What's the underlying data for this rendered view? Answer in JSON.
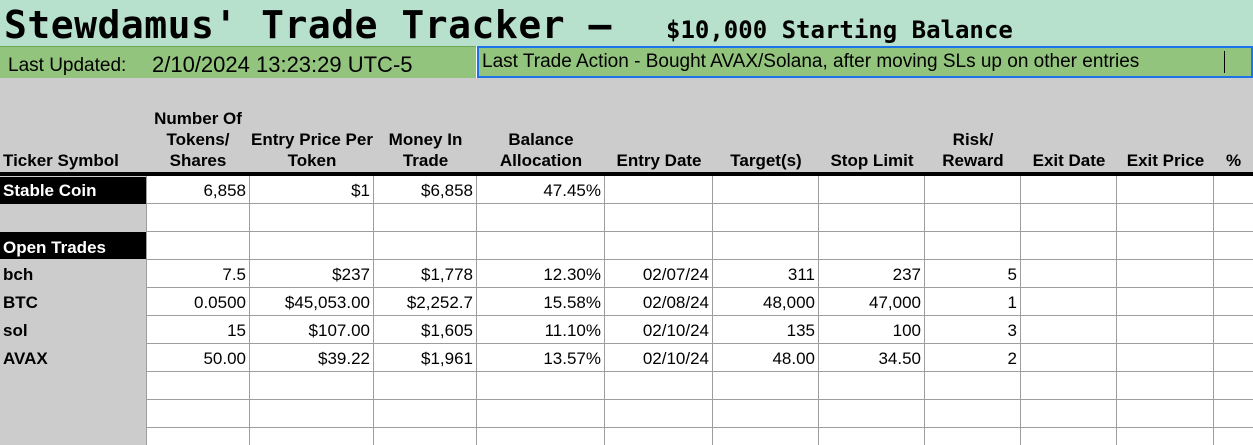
{
  "title": {
    "main": "Stewdamus' Trade Tracker –",
    "sub": "$10,000 Starting Balance"
  },
  "last_updated": {
    "label": "Last Updated:",
    "value": "2/10/2024 13:23:29  UTC-5"
  },
  "last_action": "Last Trade Action - Bought AVAX/Solana, after moving SLs up on other entries",
  "columns": [
    "Ticker Symbol",
    "Number Of Tokens/ Shares",
    "Entry Price Per Token",
    "Money In Trade",
    "Balance Allocation",
    "Entry Date",
    "Target(s)",
    "Stop Limit",
    "Risk/ Reward",
    "Exit Date",
    "Exit Price",
    "%"
  ],
  "stable": {
    "label": "Stable Coin",
    "tokens": "6,858",
    "entry_price": "$1",
    "money": "$6,858",
    "allocation": "47.45%"
  },
  "open_trades_label": "Open Trades",
  "trades": [
    {
      "ticker": "bch",
      "tokens": "7.5",
      "entry_price": "$237",
      "money": "$1,778",
      "allocation": "12.30%",
      "entry_date": "02/07/24",
      "target": "311",
      "stop": "237",
      "rr": "5"
    },
    {
      "ticker": "BTC",
      "tokens": "0.0500",
      "entry_price": "$45,053.00",
      "money": "$2,252.7",
      "allocation": "15.58%",
      "entry_date": "02/08/24",
      "target": "48,000",
      "stop": "47,000",
      "rr": "1"
    },
    {
      "ticker": "sol",
      "tokens": "15",
      "entry_price": "$107.00",
      "money": "$1,605",
      "allocation": "11.10%",
      "entry_date": "02/10/24",
      "target": "135",
      "stop": "100",
      "rr": "3"
    },
    {
      "ticker": "AVAX",
      "tokens": "50.00",
      "entry_price": "$39.22",
      "money": "$1,961",
      "allocation": "13.57%",
      "entry_date": "02/10/24",
      "target": "48.00",
      "stop": "34.50",
      "rr": "2"
    }
  ]
}
